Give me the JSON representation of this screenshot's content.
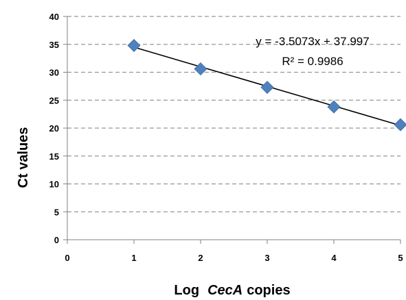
{
  "chart_data": {
    "type": "scatter",
    "x": [
      1,
      2,
      3,
      4,
      5
    ],
    "y": [
      34.8,
      30.6,
      27.3,
      23.8,
      20.6
    ],
    "xlim": [
      0,
      5
    ],
    "ylim": [
      0,
      40
    ],
    "xticks": [
      "0",
      "1",
      "2",
      "3",
      "4",
      "5"
    ],
    "yticks": [
      "0",
      "5",
      "10",
      "15",
      "20",
      "25",
      "30",
      "35",
      "40"
    ],
    "xlabel_prefix": "Log",
    "xlabel_italic": "CecA",
    "xlabel_suffix": "copies",
    "ylabel": "Ct values",
    "grid": "horizontal dashed",
    "marker_color": "#4F81BD",
    "trendline": {
      "slope": -3.5073,
      "intercept": 37.997,
      "x_range": [
        1,
        5
      ],
      "color": "#000000",
      "equation": "y = -3.5073x + 37.997",
      "r_squared": "R² = 0.9986"
    }
  }
}
